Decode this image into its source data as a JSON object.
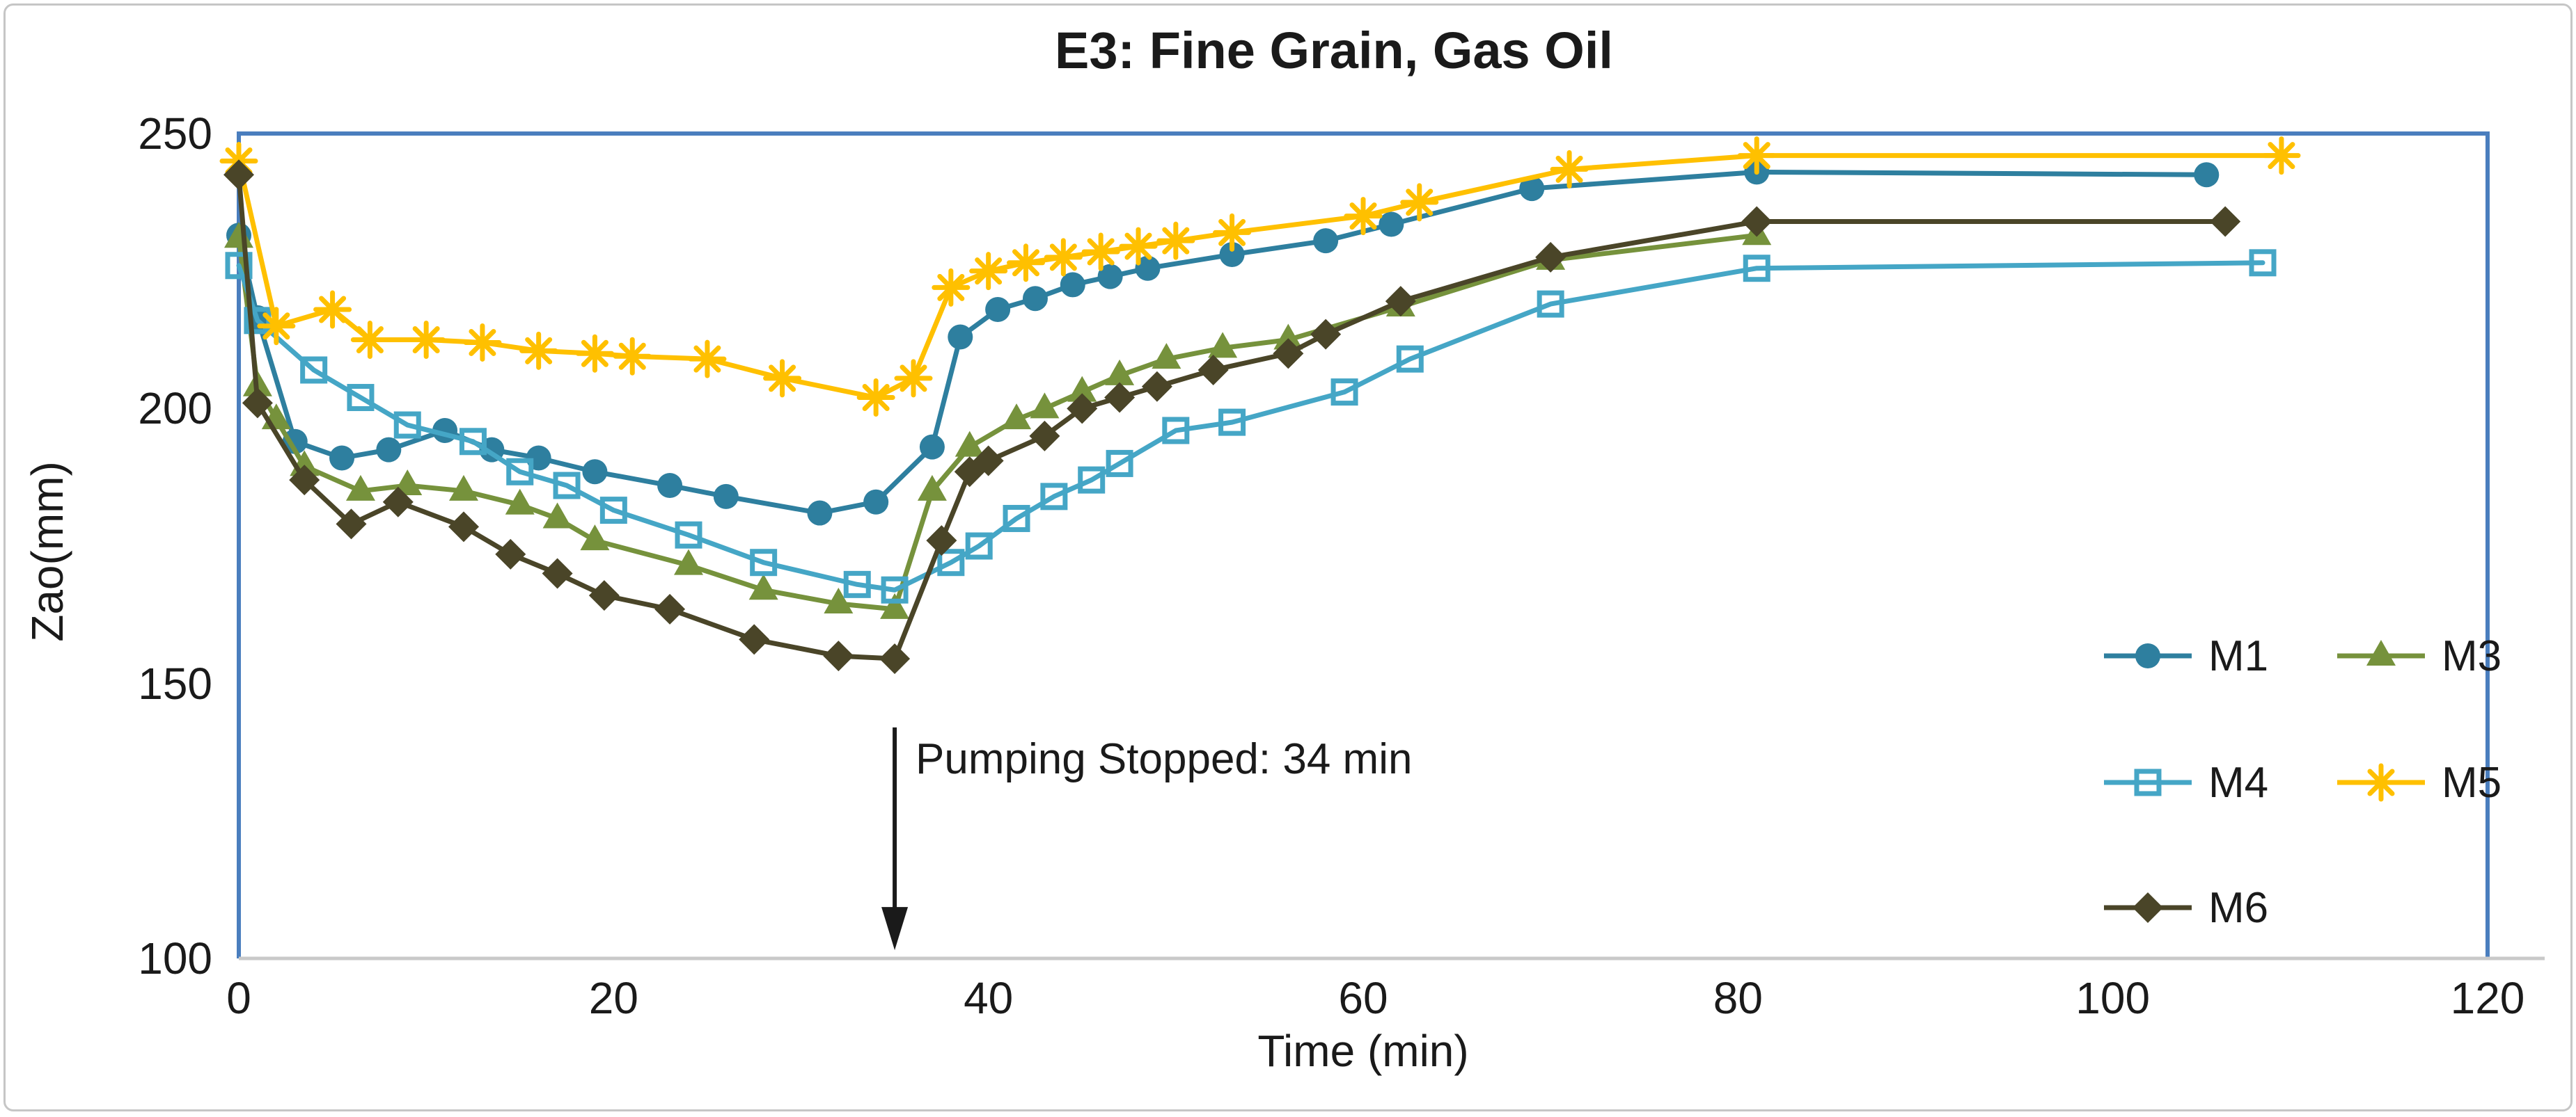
{
  "chart_data": {
    "type": "line",
    "title": "E3: Fine Grain, Gas Oil",
    "xlabel": "Time (min)",
    "ylabel": "Zao(mm)",
    "xlim": [
      0,
      120
    ],
    "ylim": [
      100,
      250
    ],
    "xticks": [
      0,
      20,
      40,
      60,
      80,
      100,
      120
    ],
    "yticks": [
      250,
      200,
      150,
      100
    ],
    "grid": false,
    "legend_position": "inside-right",
    "plot_border_color": "#4A7EBE",
    "axis_line_color": "#C9C9C9",
    "text_color": "#1A1A1A",
    "annotation": {
      "text": "Pumping Stopped: 34 min",
      "arrow_t": 35,
      "arrow_v_top": 142,
      "arrow_v_tip": 101.5
    },
    "legend": {
      "rows": [
        [
          "M1",
          "M3"
        ],
        [
          "M4",
          "M5"
        ],
        [
          "M6"
        ]
      ]
    },
    "series": [
      {
        "name": "M1",
        "color": "#2E7F9F",
        "marker": "circle",
        "points": [
          [
            0,
            231.5
          ],
          [
            1,
            216.5
          ],
          [
            3,
            194
          ],
          [
            5.5,
            191
          ],
          [
            8,
            192.5
          ],
          [
            11,
            196
          ],
          [
            13.5,
            192.5
          ],
          [
            16,
            191
          ],
          [
            19,
            188.5
          ],
          [
            23,
            186
          ],
          [
            26,
            184
          ],
          [
            31,
            181
          ],
          [
            34,
            183
          ],
          [
            37,
            193
          ],
          [
            38.5,
            213
          ],
          [
            40.5,
            218
          ],
          [
            42.5,
            220
          ],
          [
            44.5,
            222.5
          ],
          [
            46.5,
            224
          ],
          [
            48.5,
            225.5
          ],
          [
            53,
            228
          ],
          [
            58,
            230.5
          ],
          [
            61.5,
            233.5
          ],
          [
            69,
            240
          ],
          [
            81,
            243
          ],
          [
            105,
            242.5
          ]
        ]
      },
      {
        "name": "M3",
        "color": "#76923C",
        "marker": "triangle",
        "points": [
          [
            0,
            231
          ],
          [
            1,
            204
          ],
          [
            2,
            198
          ],
          [
            3.5,
            189.5
          ],
          [
            6.5,
            185
          ],
          [
            9,
            186
          ],
          [
            12,
            185
          ],
          [
            15,
            182.5
          ],
          [
            17,
            180
          ],
          [
            19,
            176
          ],
          [
            24,
            171.5
          ],
          [
            28,
            167
          ],
          [
            32,
            164.5
          ],
          [
            35,
            163.5
          ],
          [
            37,
            185
          ],
          [
            39,
            193
          ],
          [
            41.5,
            198
          ],
          [
            43,
            200
          ],
          [
            45,
            203
          ],
          [
            47,
            206
          ],
          [
            49.5,
            209
          ],
          [
            52.5,
            211
          ],
          [
            56,
            212.5
          ],
          [
            62,
            218.5
          ],
          [
            70,
            227
          ],
          [
            81,
            231.5
          ]
        ]
      },
      {
        "name": "M4",
        "color": "#45A6C6",
        "marker": "square-open",
        "points": [
          [
            0,
            226
          ],
          [
            1,
            216
          ],
          [
            4,
            207
          ],
          [
            6.5,
            202
          ],
          [
            9,
            197
          ],
          [
            12.5,
            194
          ],
          [
            15,
            188.5
          ],
          [
            17.5,
            186
          ],
          [
            20,
            181.5
          ],
          [
            24,
            177
          ],
          [
            28,
            172
          ],
          [
            33,
            168
          ],
          [
            35,
            167
          ],
          [
            38,
            172
          ],
          [
            39.5,
            175
          ],
          [
            41.5,
            180
          ],
          [
            43.5,
            184
          ],
          [
            45.5,
            187
          ],
          [
            47,
            190
          ],
          [
            50,
            196
          ],
          [
            53,
            197.5
          ],
          [
            59,
            203
          ],
          [
            62.5,
            209
          ],
          [
            70,
            219
          ],
          [
            81,
            225.5
          ],
          [
            108,
            226.5
          ]
        ]
      },
      {
        "name": "M5",
        "color": "#FFC000",
        "marker": "asterisk",
        "points": [
          [
            0,
            245
          ],
          [
            2,
            215
          ],
          [
            5,
            218
          ],
          [
            7,
            212.5
          ],
          [
            10,
            212.5
          ],
          [
            13,
            212
          ],
          [
            16,
            210.5
          ],
          [
            19,
            210
          ],
          [
            21,
            209.5
          ],
          [
            25,
            209
          ],
          [
            29,
            205.5
          ],
          [
            34,
            202
          ],
          [
            36,
            205.5
          ],
          [
            38,
            222
          ],
          [
            40,
            225
          ],
          [
            42,
            226.5
          ],
          [
            44,
            227.5
          ],
          [
            46,
            228.5
          ],
          [
            48,
            229.5
          ],
          [
            50,
            230.5
          ],
          [
            53,
            232
          ],
          [
            60,
            235
          ],
          [
            63,
            237.5
          ],
          [
            71,
            243.5
          ],
          [
            81,
            246
          ],
          [
            109,
            246
          ]
        ]
      },
      {
        "name": "M6",
        "color": "#4A4528",
        "marker": "diamond",
        "points": [
          [
            0,
            242.5
          ],
          [
            1,
            201
          ],
          [
            3.5,
            187
          ],
          [
            6,
            179
          ],
          [
            8.5,
            183
          ],
          [
            12,
            178.5
          ],
          [
            14.5,
            173.5
          ],
          [
            17,
            170
          ],
          [
            19.5,
            166
          ],
          [
            23,
            163.5
          ],
          [
            27.5,
            158
          ],
          [
            32,
            155
          ],
          [
            35,
            154.5
          ],
          [
            37.5,
            176
          ],
          [
            39,
            188.5
          ],
          [
            40,
            190.5
          ],
          [
            43,
            195
          ],
          [
            45,
            200
          ],
          [
            47,
            202
          ],
          [
            49,
            204
          ],
          [
            52,
            207
          ],
          [
            56,
            210
          ],
          [
            58,
            213.5
          ],
          [
            62,
            219.5
          ],
          [
            70,
            227.5
          ],
          [
            81,
            234
          ],
          [
            106,
            234
          ]
        ]
      }
    ]
  }
}
